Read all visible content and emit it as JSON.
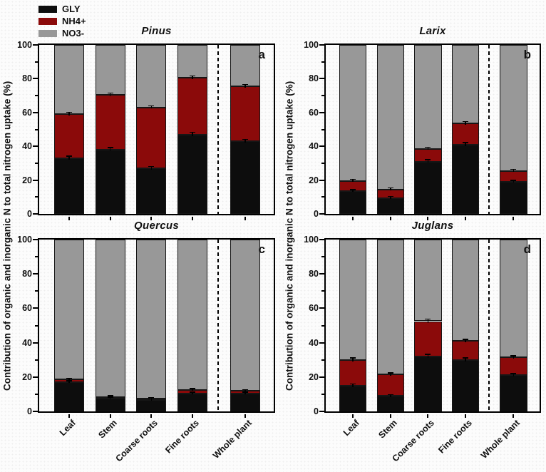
{
  "colors": {
    "axis": "#000000",
    "background": "#fcfcfc"
  },
  "legend": {
    "items": [
      {
        "label": "GLY",
        "color": "#0d0d0d"
      },
      {
        "label": "NH4+",
        "color": "#8b0a0a"
      },
      {
        "label": "NO3-",
        "color": "#989898"
      }
    ]
  },
  "axes": {
    "y_label": "Contribution of organic and inorganic N to total nitrogen uptake (%)",
    "y_ticks": [
      0,
      20,
      40,
      60,
      80,
      100
    ],
    "y_minor_step": 10,
    "ylim": [
      0,
      100
    ]
  },
  "chart_data": {
    "type": "bar",
    "stacked": true,
    "grid": false,
    "legend_position": "top-left",
    "x_tick_label_rotation": -45,
    "separator_after_category": "Fine roots",
    "categories": [
      "Leaf",
      "Stem",
      "Coarse roots",
      "Fine roots",
      "Whole plant"
    ],
    "series_names": [
      "GLY",
      "NH4+",
      "NO3-"
    ],
    "series_colors": {
      "GLY": "#0d0d0d",
      "NH4+": "#8b0a0a",
      "NO3-": "#989898"
    },
    "panels": [
      {
        "letter": "a",
        "title": "Pinus",
        "series": [
          {
            "name": "GLY",
            "values": [
              33,
              38,
              27,
              47,
              43
            ],
            "err": [
              0.8,
              0.9,
              0.7,
              1.0,
              0.8
            ]
          },
          {
            "name": "NH4+",
            "values": [
              26,
              32.5,
              36,
              33.5,
              32.5
            ],
            "err": [
              0.9,
              0.8,
              0.7,
              0.8,
              0.7
            ]
          },
          {
            "name": "NO3-",
            "values": [
              41,
              29.5,
              37,
              19.5,
              24.5
            ],
            "err": null
          }
        ]
      },
      {
        "letter": "b",
        "title": "Larix",
        "series": [
          {
            "name": "GLY",
            "values": [
              13.5,
              9.5,
              31,
              41,
              19
            ],
            "err": [
              0.6,
              0.5,
              0.8,
              0.9,
              0.6
            ]
          },
          {
            "name": "NH4+",
            "values": [
              6,
              5,
              7.5,
              12.5,
              6.5
            ],
            "err": [
              0.6,
              0.5,
              0.7,
              0.8,
              0.6
            ]
          },
          {
            "name": "NO3-",
            "values": [
              80.5,
              85.5,
              61.5,
              46.5,
              74.5
            ],
            "err": null
          }
        ]
      },
      {
        "letter": "c",
        "title": "Quercus",
        "series": [
          {
            "name": "GLY",
            "values": [
              17,
              7.5,
              6.5,
              10.5,
              10.5
            ],
            "err": [
              0.6,
              0.4,
              0.4,
              0.5,
              0.4
            ]
          },
          {
            "name": "NH4+",
            "values": [
              1.5,
              1,
              1,
              2,
              1.5
            ],
            "err": [
              0.4,
              0.3,
              0.3,
              0.4,
              0.3
            ]
          },
          {
            "name": "NO3-",
            "values": [
              81.5,
              91.5,
              92.5,
              87.5,
              88
            ],
            "err": null
          }
        ]
      },
      {
        "letter": "d",
        "title": "Juglans",
        "series": [
          {
            "name": "GLY",
            "values": [
              15,
              9,
              32,
              30,
              21
            ],
            "err": [
              0.7,
              0.5,
              0.9,
              0.8,
              0.6
            ]
          },
          {
            "name": "NH4+",
            "values": [
              15,
              12.5,
              20.5,
              11,
              10.5
            ],
            "err": [
              0.8,
              0.7,
              0.9,
              0.7,
              0.6
            ]
          },
          {
            "name": "NO3-",
            "values": [
              70,
              78.5,
              47.5,
              59,
              68.5
            ],
            "err": null
          }
        ]
      }
    ]
  }
}
